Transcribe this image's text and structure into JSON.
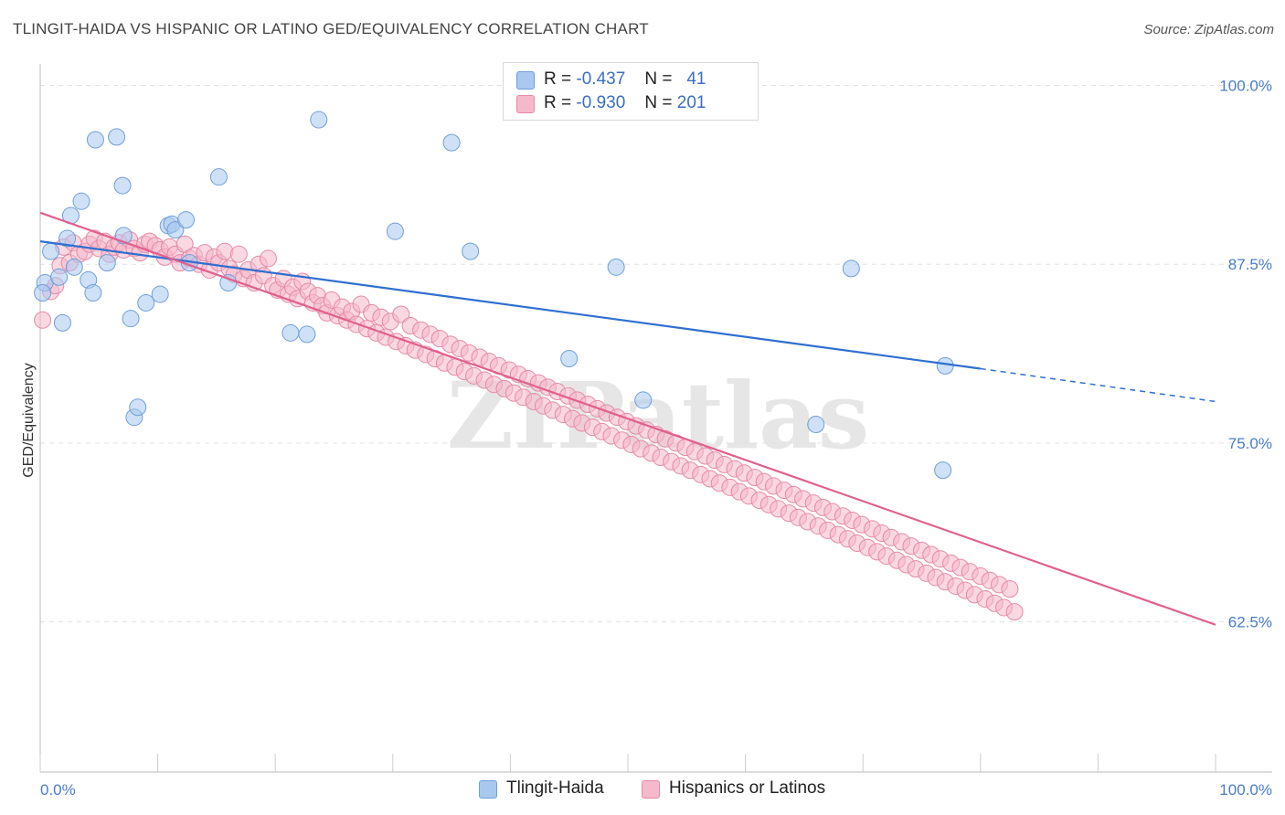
{
  "title": "TLINGIT-HAIDA VS HISPANIC OR LATINO GED/EQUIVALENCY CORRELATION CHART",
  "source": "Source: ZipAtlas.com",
  "watermark": "ZIPatlas",
  "legend": {
    "rows": [
      {
        "r_label": "R =",
        "r_value": "-0.437",
        "n_label": "N =",
        "n_value": "41",
        "color": "#a8c8f0",
        "border": "#6f9fd8"
      },
      {
        "r_label": "R =",
        "r_value": "-0.930",
        "n_label": "N =",
        "n_value": "201",
        "color": "#f6b8cb",
        "border": "#e58aa8"
      }
    ]
  },
  "bottom_legend": [
    {
      "label": "Tlingit-Haida",
      "color": "#a8c8f0",
      "border": "#6f9fd8"
    },
    {
      "label": "Hispanics or Latinos",
      "color": "#f6b8cb",
      "border": "#e58aa8"
    }
  ],
  "chart_data": {
    "type": "scatter",
    "title": "TLINGIT-HAIDA VS HISPANIC OR LATINO GED/EQUIVALENCY CORRELATION CHART",
    "xlabel": "",
    "ylabel": "GED/Equivalency",
    "xlim": [
      0,
      100
    ],
    "ylim": [
      52,
      101.5
    ],
    "x_ticks": [
      "0.0%",
      "100.0%"
    ],
    "y_ticks": [
      {
        "value": 100.0,
        "label": "100.0%"
      },
      {
        "value": 87.5,
        "label": "87.5%"
      },
      {
        "value": 75.0,
        "label": "75.0%"
      },
      {
        "value": 62.5,
        "label": "62.5%"
      }
    ],
    "grid": true,
    "series": [
      {
        "name": "Tlingit-Haida",
        "color": "#a8c8f0",
        "stroke": "#6f9fd8",
        "trend": {
          "x": [
            0,
            80
          ],
          "y": [
            89.1,
            80.2
          ],
          "dashed_to": [
            100,
            77.9
          ],
          "color": "#2f6fd0"
        },
        "points": [
          [
            0.4,
            86.2
          ],
          [
            0.9,
            88.4
          ],
          [
            1.6,
            86.6
          ],
          [
            1.9,
            83.4
          ],
          [
            2.3,
            89.3
          ],
          [
            2.6,
            90.9
          ],
          [
            2.9,
            87.3
          ],
          [
            3.5,
            91.9
          ],
          [
            4.1,
            86.4
          ],
          [
            4.5,
            85.5
          ],
          [
            4.7,
            96.2
          ],
          [
            5.7,
            87.6
          ],
          [
            6.5,
            96.4
          ],
          [
            7.0,
            93.0
          ],
          [
            7.1,
            89.5
          ],
          [
            7.7,
            83.7
          ],
          [
            8.0,
            76.8
          ],
          [
            8.3,
            77.5
          ],
          [
            9.0,
            84.8
          ],
          [
            10.2,
            85.4
          ],
          [
            10.9,
            90.2
          ],
          [
            11.2,
            90.3
          ],
          [
            11.5,
            89.9
          ],
          [
            12.4,
            90.6
          ],
          [
            12.7,
            87.6
          ],
          [
            15.2,
            93.6
          ],
          [
            16.0,
            86.2
          ],
          [
            21.3,
            82.7
          ],
          [
            22.7,
            82.6
          ],
          [
            23.7,
            97.6
          ],
          [
            30.2,
            89.8
          ],
          [
            35.0,
            96.0
          ],
          [
            36.6,
            88.4
          ],
          [
            45.0,
            80.9
          ],
          [
            49.0,
            87.3
          ],
          [
            51.3,
            78.0
          ],
          [
            66.0,
            76.3
          ],
          [
            69.0,
            87.2
          ],
          [
            76.8,
            73.1
          ],
          [
            77.0,
            80.4
          ],
          [
            0.2,
            85.5
          ]
        ]
      },
      {
        "name": "Hispanics or Latinos",
        "color": "#f6b8cb",
        "stroke": "#e58aa8",
        "trend": {
          "x": [
            0,
            100
          ],
          "y": [
            91.1,
            62.3
          ],
          "color": "#e0608e"
        },
        "points": [
          [
            0.2,
            83.6
          ],
          [
            0.9,
            85.6
          ],
          [
            1.3,
            86.0
          ],
          [
            1.7,
            87.4
          ],
          [
            2.0,
            88.7
          ],
          [
            2.5,
            87.6
          ],
          [
            2.8,
            89.0
          ],
          [
            3.3,
            88.2
          ],
          [
            3.8,
            88.4
          ],
          [
            4.2,
            88.9
          ],
          [
            4.6,
            89.3
          ],
          [
            5.0,
            88.6
          ],
          [
            5.5,
            89.1
          ],
          [
            5.9,
            88.2
          ],
          [
            6.3,
            88.7
          ],
          [
            6.7,
            89.0
          ],
          [
            7.1,
            88.5
          ],
          [
            7.6,
            89.2
          ],
          [
            8.0,
            88.6
          ],
          [
            8.5,
            88.3
          ],
          [
            8.9,
            88.9
          ],
          [
            9.3,
            89.1
          ],
          [
            9.8,
            88.8
          ],
          [
            10.2,
            88.5
          ],
          [
            10.6,
            88.0
          ],
          [
            11.0,
            88.7
          ],
          [
            11.5,
            88.2
          ],
          [
            11.9,
            87.6
          ],
          [
            12.3,
            88.9
          ],
          [
            12.7,
            87.9
          ],
          [
            13.1,
            88.1
          ],
          [
            13.5,
            87.5
          ],
          [
            14.0,
            88.3
          ],
          [
            14.4,
            87.1
          ],
          [
            14.8,
            88.0
          ],
          [
            15.2,
            87.6
          ],
          [
            15.7,
            88.4
          ],
          [
            16.1,
            87.2
          ],
          [
            16.5,
            86.8
          ],
          [
            16.9,
            88.2
          ],
          [
            17.3,
            86.5
          ],
          [
            17.7,
            87.1
          ],
          [
            18.2,
            86.2
          ],
          [
            18.6,
            87.5
          ],
          [
            19.0,
            86.7
          ],
          [
            19.4,
            87.9
          ],
          [
            19.8,
            86.0
          ],
          [
            20.2,
            85.7
          ],
          [
            20.7,
            86.5
          ],
          [
            21.1,
            85.4
          ],
          [
            21.5,
            85.9
          ],
          [
            21.9,
            85.1
          ],
          [
            22.3,
            86.3
          ],
          [
            22.8,
            85.6
          ],
          [
            23.2,
            84.8
          ],
          [
            23.6,
            85.3
          ],
          [
            24.0,
            84.6
          ],
          [
            24.4,
            84.1
          ],
          [
            24.8,
            85.0
          ],
          [
            25.3,
            83.9
          ],
          [
            25.7,
            84.5
          ],
          [
            26.1,
            83.6
          ],
          [
            26.5,
            84.2
          ],
          [
            26.9,
            83.3
          ],
          [
            27.3,
            84.7
          ],
          [
            27.8,
            83.0
          ],
          [
            28.2,
            84.1
          ],
          [
            28.6,
            82.7
          ],
          [
            29.0,
            83.8
          ],
          [
            29.4,
            82.4
          ],
          [
            29.8,
            83.5
          ],
          [
            30.3,
            82.1
          ],
          [
            30.7,
            84.0
          ],
          [
            31.1,
            81.8
          ],
          [
            31.5,
            83.2
          ],
          [
            31.9,
            81.5
          ],
          [
            32.4,
            82.9
          ],
          [
            32.8,
            81.2
          ],
          [
            33.2,
            82.6
          ],
          [
            33.6,
            80.9
          ],
          [
            34.0,
            82.3
          ],
          [
            34.4,
            80.6
          ],
          [
            34.9,
            81.9
          ],
          [
            35.3,
            80.3
          ],
          [
            35.7,
            81.6
          ],
          [
            36.1,
            80.0
          ],
          [
            36.5,
            81.3
          ],
          [
            36.9,
            79.7
          ],
          [
            37.4,
            81.0
          ],
          [
            37.8,
            79.4
          ],
          [
            38.2,
            80.7
          ],
          [
            38.6,
            79.1
          ],
          [
            39.0,
            80.4
          ],
          [
            39.5,
            78.8
          ],
          [
            39.9,
            80.1
          ],
          [
            40.3,
            78.5
          ],
          [
            40.7,
            79.8
          ],
          [
            41.1,
            78.2
          ],
          [
            41.5,
            79.5
          ],
          [
            42.0,
            77.9
          ],
          [
            42.4,
            79.2
          ],
          [
            42.8,
            77.6
          ],
          [
            43.2,
            78.9
          ],
          [
            43.6,
            77.3
          ],
          [
            44.0,
            78.6
          ],
          [
            44.5,
            77.0
          ],
          [
            44.9,
            78.3
          ],
          [
            45.3,
            76.7
          ],
          [
            45.7,
            78.0
          ],
          [
            46.1,
            76.4
          ],
          [
            46.6,
            77.7
          ],
          [
            47.0,
            76.1
          ],
          [
            47.4,
            77.4
          ],
          [
            47.8,
            75.8
          ],
          [
            48.2,
            77.1
          ],
          [
            48.6,
            75.5
          ],
          [
            49.1,
            76.8
          ],
          [
            49.5,
            75.2
          ],
          [
            49.9,
            76.5
          ],
          [
            50.3,
            74.9
          ],
          [
            50.7,
            76.2
          ],
          [
            51.1,
            74.6
          ],
          [
            51.6,
            75.9
          ],
          [
            52.0,
            74.3
          ],
          [
            52.4,
            75.6
          ],
          [
            52.8,
            74.0
          ],
          [
            53.2,
            75.3
          ],
          [
            53.7,
            73.7
          ],
          [
            54.1,
            75.0
          ],
          [
            54.5,
            73.4
          ],
          [
            54.9,
            74.7
          ],
          [
            55.3,
            73.1
          ],
          [
            55.7,
            74.4
          ],
          [
            56.2,
            72.8
          ],
          [
            56.6,
            74.1
          ],
          [
            57.0,
            72.5
          ],
          [
            57.4,
            73.8
          ],
          [
            57.8,
            72.2
          ],
          [
            58.2,
            73.5
          ],
          [
            58.7,
            71.9
          ],
          [
            59.1,
            73.2
          ],
          [
            59.5,
            71.6
          ],
          [
            59.9,
            72.9
          ],
          [
            60.3,
            71.3
          ],
          [
            60.8,
            72.6
          ],
          [
            61.2,
            71.0
          ],
          [
            61.6,
            72.3
          ],
          [
            62.0,
            70.7
          ],
          [
            62.4,
            72.0
          ],
          [
            62.8,
            70.4
          ],
          [
            63.3,
            71.7
          ],
          [
            63.7,
            70.1
          ],
          [
            64.1,
            71.4
          ],
          [
            64.5,
            69.8
          ],
          [
            64.9,
            71.1
          ],
          [
            65.3,
            69.5
          ],
          [
            65.8,
            70.8
          ],
          [
            66.2,
            69.2
          ],
          [
            66.6,
            70.5
          ],
          [
            67.0,
            68.9
          ],
          [
            67.4,
            70.2
          ],
          [
            67.9,
            68.6
          ],
          [
            68.3,
            69.9
          ],
          [
            68.7,
            68.3
          ],
          [
            69.1,
            69.6
          ],
          [
            69.5,
            68.0
          ],
          [
            69.9,
            69.3
          ],
          [
            70.4,
            67.7
          ],
          [
            70.8,
            69.0
          ],
          [
            71.2,
            67.4
          ],
          [
            71.6,
            68.7
          ],
          [
            72.0,
            67.1
          ],
          [
            72.4,
            68.4
          ],
          [
            72.9,
            66.8
          ],
          [
            73.3,
            68.1
          ],
          [
            73.7,
            66.5
          ],
          [
            74.1,
            67.8
          ],
          [
            74.5,
            66.2
          ],
          [
            75.0,
            67.5
          ],
          [
            75.4,
            65.9
          ],
          [
            75.8,
            67.2
          ],
          [
            76.2,
            65.6
          ],
          [
            76.6,
            66.9
          ],
          [
            77.0,
            65.3
          ],
          [
            77.5,
            66.6
          ],
          [
            77.9,
            65.0
          ],
          [
            78.3,
            66.3
          ],
          [
            78.7,
            64.7
          ],
          [
            79.1,
            66.0
          ],
          [
            79.5,
            64.4
          ],
          [
            80.0,
            65.7
          ],
          [
            80.4,
            64.1
          ],
          [
            80.8,
            65.4
          ],
          [
            81.2,
            63.8
          ],
          [
            81.6,
            65.1
          ],
          [
            82.0,
            63.5
          ],
          [
            82.5,
            64.8
          ],
          [
            82.9,
            63.2
          ]
        ]
      }
    ]
  }
}
